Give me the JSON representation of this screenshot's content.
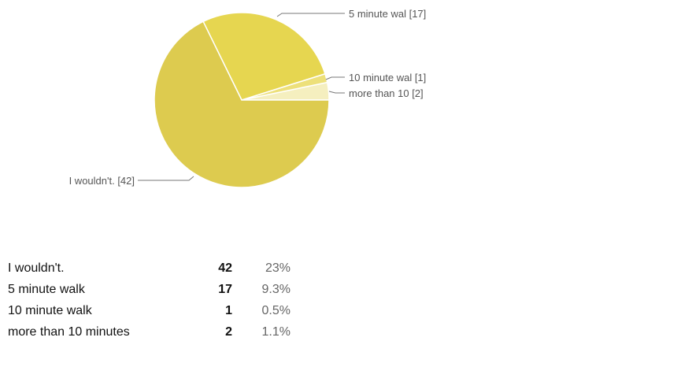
{
  "chart_data": {
    "type": "pie",
    "slices": [
      {
        "label": "I wouldn't.",
        "value": 42,
        "callout": "I wouldn't. [42]",
        "color": "#ddcb4f"
      },
      {
        "label": "5 minute walk",
        "value": 17,
        "callout": "5 minute wal [17]",
        "color": "#e6d650"
      },
      {
        "label": "10 minute walk",
        "value": 1,
        "callout": "10 minute wal [1]",
        "color": "#ede07a"
      },
      {
        "label": "more than 10 minutes",
        "value": 2,
        "callout": "more than 10  [2]",
        "color": "#f5efbf"
      }
    ]
  },
  "table": {
    "rows": [
      {
        "label": "I wouldn't.",
        "count": "42",
        "percent": "23%"
      },
      {
        "label": "5 minute walk",
        "count": "17",
        "percent": "9.3%"
      },
      {
        "label": "10 minute walk",
        "count": "1",
        "percent": "0.5%"
      },
      {
        "label": "more than 10 minutes",
        "count": "2",
        "percent": "1.1%"
      }
    ]
  }
}
